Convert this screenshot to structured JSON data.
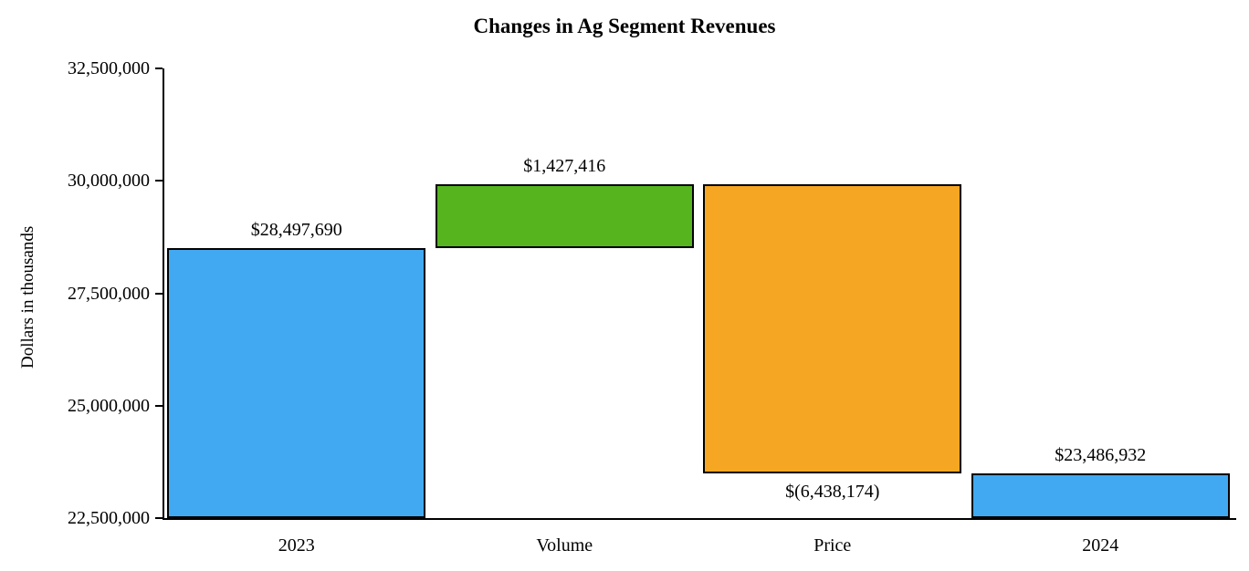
{
  "chart_data": {
    "type": "bar",
    "subtype": "waterfall",
    "title": "Changes in Ag Segment Revenues",
    "xlabel": "",
    "ylabel": "Dollars in thousands",
    "ylim": [
      22500000,
      32500000
    ],
    "yticks": [
      22500000,
      25000000,
      27500000,
      30000000,
      32500000
    ],
    "ytick_labels": [
      "22,500,000",
      "25,000,000",
      "27,500,000",
      "30,000,000",
      "32,500,000"
    ],
    "categories": [
      "2023",
      "Volume",
      "Price",
      "2024"
    ],
    "grid": false,
    "legend": false,
    "colors": {
      "total": "#41A9F1",
      "increase": "#56B41E",
      "decrease": "#F5A623",
      "outline": "#000000"
    },
    "bars": [
      {
        "category": "2023",
        "start": 22500000,
        "end": 28497690,
        "value": 28497690,
        "label": "$28,497,690",
        "label_position": "above",
        "color": "#41A9F1"
      },
      {
        "category": "Volume",
        "start": 28497690,
        "end": 29925106,
        "value": 1427416,
        "label": "$1,427,416",
        "label_position": "above",
        "color": "#56B41E"
      },
      {
        "category": "Price",
        "start": 29925106,
        "end": 23486932,
        "value": -6438174,
        "label": "$(6,438,174)",
        "label_position": "below",
        "color": "#F5A623"
      },
      {
        "category": "2024",
        "start": 22500000,
        "end": 23486932,
        "value": 23486932,
        "label": "$23,486,932",
        "label_position": "above",
        "color": "#41A9F1"
      }
    ]
  }
}
